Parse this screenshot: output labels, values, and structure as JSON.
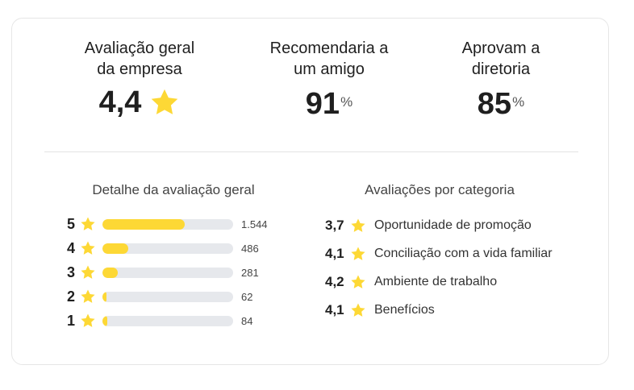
{
  "colors": {
    "star": "#fdd835",
    "track": "#e6e8ec",
    "text": "#1f1f1f"
  },
  "summary": {
    "overall": {
      "label": "Avaliação geral\nda empresa",
      "value": "4,4",
      "icon": "star-icon"
    },
    "recommend": {
      "label": "Recomendaria a\num amigo",
      "value": "91",
      "unit": "%"
    },
    "approve": {
      "label": "Aprovam a\ndiretoria",
      "value": "85",
      "unit": "%"
    }
  },
  "breakdown": {
    "title": "Detalhe da avaliação geral",
    "rows": [
      {
        "stars": "5",
        "count": "1.544",
        "fill_fraction": 0.63
      },
      {
        "stars": "4",
        "count": "486",
        "fill_fraction": 0.2
      },
      {
        "stars": "3",
        "count": "281",
        "fill_fraction": 0.12
      },
      {
        "stars": "2",
        "count": "62",
        "fill_fraction": 0.03
      },
      {
        "stars": "1",
        "count": "84",
        "fill_fraction": 0.035
      }
    ]
  },
  "categories": {
    "title": "Avaliações por categoria",
    "items": [
      {
        "value": "3,7",
        "label": "Oportunidade de promoção"
      },
      {
        "value": "4,1",
        "label": "Conciliação com a vida familiar"
      },
      {
        "value": "4,2",
        "label": "Ambiente de trabalho"
      },
      {
        "value": "4,1",
        "label": "Benefícios"
      }
    ]
  }
}
